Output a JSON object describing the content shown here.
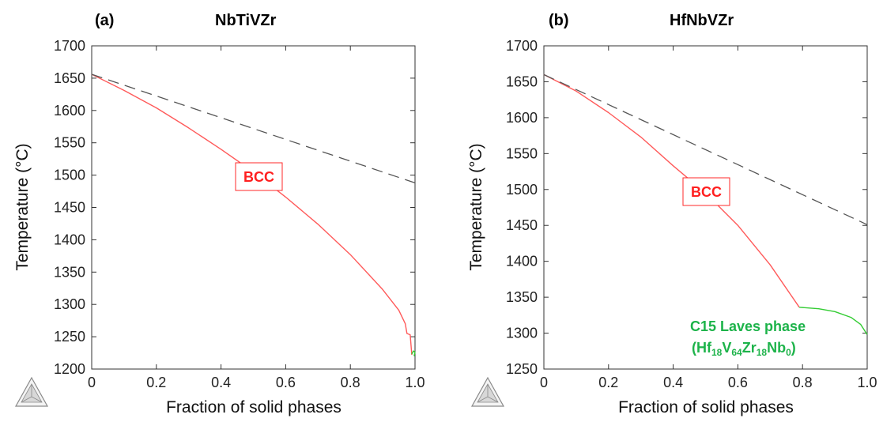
{
  "chart_data": [
    {
      "type": "line",
      "panel_label": "(a)",
      "title": "NbTiVZr",
      "xlabel": "Fraction of solid phases",
      "ylabel": "Temperature (°C)",
      "xlim": [
        0,
        1.0
      ],
      "ylim": [
        1200,
        1700
      ],
      "xticks": [
        0,
        0.2,
        0.4,
        0.6,
        0.8,
        1.0
      ],
      "xtick_labels": [
        "0",
        "0.2",
        "0.4",
        "0.6",
        "0.8",
        "1.0"
      ],
      "yticks": [
        1200,
        1250,
        1300,
        1350,
        1400,
        1450,
        1500,
        1550,
        1600,
        1650,
        1700
      ],
      "ytick_labels": [
        "1200",
        "1250",
        "1300",
        "1350",
        "1400",
        "1450",
        "1500",
        "1550",
        "1600",
        "1650",
        "1700"
      ],
      "series": [
        {
          "color": "#ff5a5a",
          "style": "solid",
          "points": [
            [
              0,
              1656
            ],
            [
              0.1,
              1631
            ],
            [
              0.2,
              1604
            ],
            [
              0.3,
              1573
            ],
            [
              0.4,
              1540
            ],
            [
              0.5,
              1505
            ],
            [
              0.6,
              1466
            ],
            [
              0.7,
              1424
            ],
            [
              0.8,
              1377
            ],
            [
              0.9,
              1323
            ],
            [
              0.95,
              1291
            ],
            [
              0.97,
              1270
            ],
            [
              0.975,
              1255
            ],
            [
              0.985,
              1253
            ],
            [
              0.99,
              1222
            ]
          ]
        },
        {
          "color": "#555555",
          "style": "dashed",
          "points": [
            [
              0,
              1656
            ],
            [
              1.0,
              1488
            ]
          ]
        },
        {
          "color": "#33cc33",
          "style": "solid",
          "points": [
            [
              0.99,
              1223
            ],
            [
              0.995,
              1228
            ],
            [
              1.0,
              1226
            ],
            [
              0.997,
              1220
            ]
          ]
        }
      ],
      "annotations": [
        {
          "text": "BCC",
          "x": 0.52,
          "y": 1497,
          "color": "#ff1f1f"
        }
      ]
    },
    {
      "type": "line",
      "panel_label": "(b)",
      "title": "HfNbVZr",
      "xlabel": "Fraction of solid phases",
      "ylabel": "Temperature (°C)",
      "xlim": [
        0,
        1.0
      ],
      "ylim": [
        1250,
        1700
      ],
      "xticks": [
        0,
        0.2,
        0.4,
        0.6,
        0.8,
        1.0
      ],
      "xtick_labels": [
        "0",
        "0.2",
        "0.4",
        "0.6",
        "0.8",
        "1.0"
      ],
      "yticks": [
        1250,
        1300,
        1350,
        1400,
        1450,
        1500,
        1550,
        1600,
        1650,
        1700
      ],
      "ytick_labels": [
        "1250",
        "1300",
        "1350",
        "1400",
        "1450",
        "1500",
        "1550",
        "1600",
        "1650",
        "1700"
      ],
      "series": [
        {
          "color": "#ff5a5a",
          "style": "solid",
          "points": [
            [
              0,
              1660
            ],
            [
              0.1,
              1637
            ],
            [
              0.2,
              1607
            ],
            [
              0.3,
              1573
            ],
            [
              0.4,
              1533
            ],
            [
              0.5,
              1495
            ],
            [
              0.6,
              1450
            ],
            [
              0.7,
              1395
            ],
            [
              0.79,
              1336
            ]
          ]
        },
        {
          "color": "#555555",
          "style": "dashed",
          "points": [
            [
              0,
              1660
            ],
            [
              1.0,
              1451
            ]
          ]
        },
        {
          "color": "#33cc33",
          "style": "solid",
          "points": [
            [
              0.79,
              1336
            ],
            [
              0.85,
              1334
            ],
            [
              0.9,
              1330
            ],
            [
              0.95,
              1322
            ],
            [
              0.98,
              1312
            ],
            [
              1.0,
              1298
            ]
          ]
        }
      ],
      "annotations": [
        {
          "text": "BCC",
          "x": 0.5,
          "y": 1495,
          "color": "#ff1f1f"
        },
        {
          "text": "C15 Laves phase",
          "x": 0.85,
          "y": 1311,
          "color": "#1db34a"
        },
        {
          "text": "(Hf18V64Zr18Nb0)",
          "x": 0.85,
          "y": 1283,
          "color": "#1db34a"
        }
      ]
    }
  ],
  "labels": {
    "panel_a": {
      "tag": "(a)",
      "title": "NbTiVZr",
      "ylabel": "Temperature (°C)",
      "xlabel": "Fraction of solid phases",
      "bcc": "BCC"
    },
    "panel_b": {
      "tag": "(b)",
      "title": "HfNbVZr",
      "ylabel": "Temperature (°C)",
      "xlabel": "Fraction of solid phases",
      "bcc": "BCC",
      "c15_line1": "C15 Laves phase",
      "c15_paren_open": "(Hf",
      "c15_sub1": "18",
      "c15_v": "V",
      "c15_sub2": "64",
      "c15_zr": "Zr",
      "c15_sub3": "18",
      "c15_nb": "Nb",
      "c15_sub4": "0",
      "c15_paren_close": ")"
    }
  },
  "logo": {
    "icon": "thermo-calc-logo-icon"
  }
}
